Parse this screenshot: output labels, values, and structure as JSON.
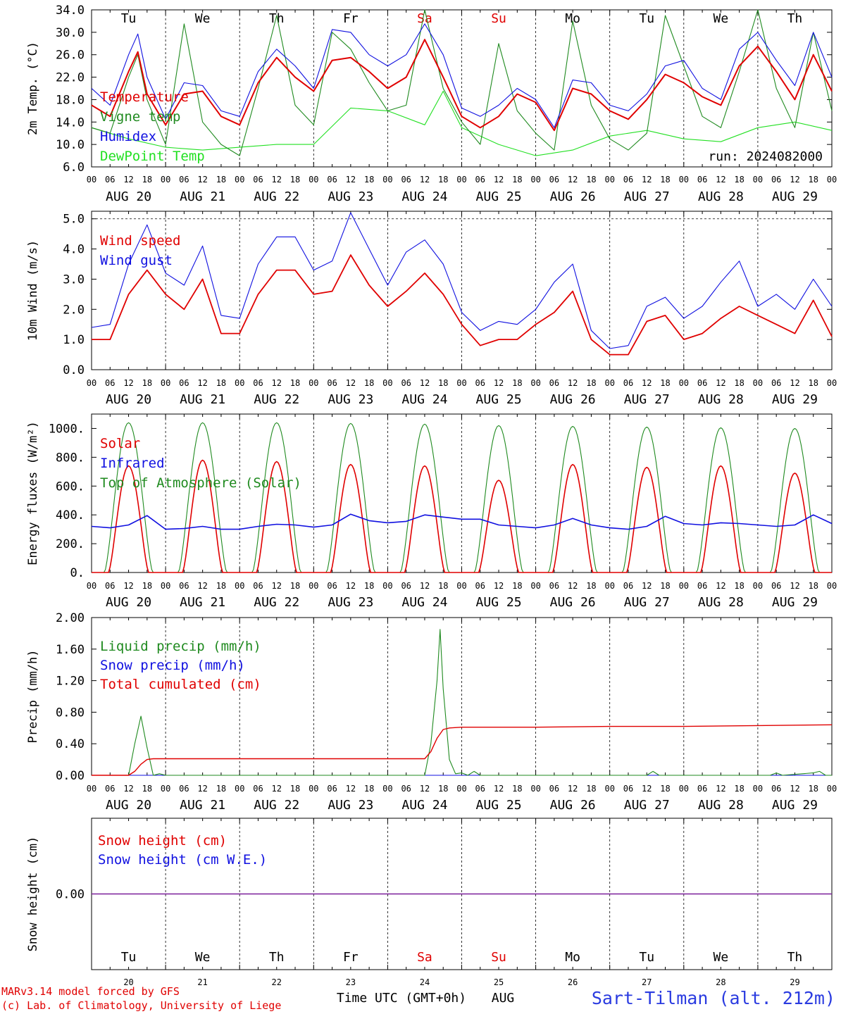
{
  "colors": {
    "red": "#e00000",
    "green": "#1f8a1f",
    "blue": "#1010e0",
    "lightgreen": "#22e022",
    "purple": "#7a1f9a"
  },
  "days": [
    "Tu",
    "We",
    "Th",
    "Fr",
    "Sa",
    "Su",
    "Mo",
    "Tu",
    "We",
    "Th"
  ],
  "weekend_days": [
    4,
    5
  ],
  "dates": [
    "AUG 20",
    "AUG 21",
    "AUG 22",
    "AUG 23",
    "AUG 24",
    "AUG 25",
    "AUG 26",
    "AUG 27",
    "AUG 28",
    "AUG 29"
  ],
  "date_numbers": [
    "20",
    "21",
    "22",
    "23",
    "24",
    "25",
    "26",
    "27",
    "28",
    "29"
  ],
  "hour_ticks": [
    "00",
    "06",
    "12",
    "18"
  ],
  "final_hour_tick": "00",
  "footer": {
    "credit_line1": "MARv3.14 model forced by GFS",
    "credit_line2": "(c) Lab. of Climatology, University of Liege",
    "xlabel": "Time UTC (GMT+0h)",
    "month": "AUG",
    "station": "Sart-Tilman (alt. 212m)"
  },
  "chart_data": [
    {
      "type": "line",
      "ylabel": "2m Temp. (°C)",
      "ylim": [
        6,
        34
      ],
      "yticks": [
        "6.0",
        "10.0",
        "14.0",
        "18.0",
        "22.0",
        "26.0",
        "30.0",
        "34.0"
      ],
      "run_label": "run: 2024082000",
      "x_unit": "hours since 2024-08-20 00 UTC",
      "series": [
        {
          "name": "Temperature",
          "color": "red",
          "x": [
            0,
            6,
            12,
            15,
            18,
            24,
            30,
            36,
            42,
            48,
            54,
            60,
            66,
            72,
            78,
            84,
            90,
            96,
            102,
            108,
            114,
            120,
            126,
            132,
            138,
            144,
            150,
            156,
            162,
            168,
            174,
            180,
            186,
            192,
            198,
            204,
            210,
            216,
            222,
            228,
            234,
            240
          ],
          "y": [
            17,
            15,
            23,
            26.5,
            19,
            13.5,
            19,
            19.5,
            15,
            13.5,
            21,
            25.5,
            22,
            19.5,
            25,
            25.5,
            23,
            20,
            22,
            28.7,
            22,
            15,
            13,
            15,
            19,
            17.5,
            12.5,
            20,
            19,
            16,
            14.5,
            18,
            22.5,
            21,
            18.5,
            17,
            24,
            27.5,
            23,
            18,
            26,
            19.5
          ]
        },
        {
          "name": "Vigne temp",
          "color": "green",
          "x": [
            0,
            6,
            12,
            15,
            18,
            24,
            30,
            36,
            42,
            48,
            54,
            60,
            66,
            72,
            78,
            84,
            90,
            96,
            102,
            108,
            114,
            120,
            126,
            132,
            138,
            144,
            150,
            156,
            162,
            168,
            174,
            180,
            186,
            192,
            198,
            204,
            210,
            216,
            222,
            228,
            234,
            240
          ],
          "y": [
            13,
            12,
            22,
            26,
            18,
            10,
            31.5,
            14,
            10,
            8,
            20,
            33,
            17,
            13.5,
            30,
            27,
            21,
            16,
            17,
            34,
            20,
            14,
            10,
            28,
            16,
            12,
            9,
            32,
            17,
            11,
            9,
            12,
            33,
            24,
            15,
            13,
            23,
            34,
            20,
            13,
            30,
            16
          ]
        },
        {
          "name": "Humidex",
          "color": "blue",
          "x": [
            0,
            6,
            12,
            15,
            18,
            24,
            30,
            36,
            42,
            48,
            54,
            60,
            66,
            72,
            78,
            84,
            90,
            96,
            102,
            108,
            114,
            120,
            126,
            132,
            138,
            144,
            150,
            156,
            162,
            168,
            174,
            180,
            186,
            192,
            198,
            204,
            210,
            216,
            222,
            228,
            234,
            240
          ],
          "y": [
            20,
            17,
            26,
            29.7,
            22,
            14.5,
            21,
            20.5,
            16,
            15,
            23,
            27,
            24,
            20,
            30.5,
            30,
            26,
            24,
            26,
            31.5,
            26,
            16.5,
            15,
            17,
            20,
            18,
            13,
            21.5,
            21,
            17,
            16,
            19,
            24,
            25,
            20,
            18,
            27,
            30,
            25,
            20.5,
            30,
            22
          ]
        },
        {
          "name": "DewPoint Temp",
          "color": "lightgreen",
          "x": [
            0,
            12,
            24,
            36,
            48,
            60,
            72,
            84,
            96,
            108,
            114,
            120,
            132,
            144,
            156,
            168,
            180,
            192,
            204,
            216,
            228,
            240
          ],
          "y": [
            13,
            11,
            9.5,
            9,
            9.5,
            10,
            10,
            16.5,
            16,
            13.5,
            19.5,
            13,
            10,
            8,
            9,
            11.5,
            12.5,
            11,
            10.5,
            13,
            14,
            12.5
          ]
        }
      ]
    },
    {
      "type": "line",
      "ylabel": "10m Wind (m/s)",
      "ylim": [
        0,
        5.25
      ],
      "yticks": [
        "0.0",
        "1.0",
        "2.0",
        "3.0",
        "4.0",
        "5.0"
      ],
      "reference_line": 5.0,
      "x_unit": "hours since 2024-08-20 00 UTC",
      "series": [
        {
          "name": "Wind speed",
          "color": "red",
          "x": [
            0,
            6,
            12,
            18,
            24,
            30,
            36,
            42,
            48,
            54,
            60,
            66,
            72,
            78,
            84,
            90,
            96,
            102,
            108,
            114,
            120,
            126,
            132,
            138,
            144,
            150,
            156,
            162,
            168,
            174,
            180,
            186,
            192,
            198,
            204,
            210,
            216,
            222,
            228,
            234,
            240
          ],
          "y": [
            1.0,
            1.0,
            2.5,
            3.3,
            2.5,
            2.0,
            3.0,
            1.2,
            1.2,
            2.5,
            3.3,
            3.3,
            2.5,
            2.6,
            3.8,
            2.8,
            2.1,
            2.6,
            3.2,
            2.5,
            1.5,
            0.8,
            1.0,
            1.0,
            1.5,
            1.9,
            2.6,
            1.0,
            0.5,
            0.5,
            1.6,
            1.8,
            1.0,
            1.2,
            1.7,
            2.1,
            1.8,
            1.5,
            1.2,
            2.3,
            1.1
          ]
        },
        {
          "name": "Wind gust",
          "color": "blue",
          "x": [
            0,
            6,
            12,
            18,
            24,
            30,
            36,
            42,
            48,
            54,
            60,
            66,
            72,
            78,
            84,
            90,
            96,
            102,
            108,
            114,
            120,
            126,
            132,
            138,
            144,
            150,
            156,
            162,
            168,
            174,
            180,
            186,
            192,
            198,
            204,
            210,
            216,
            222,
            228,
            234,
            240
          ],
          "y": [
            1.4,
            1.5,
            3.5,
            4.8,
            3.2,
            2.8,
            4.1,
            1.8,
            1.7,
            3.5,
            4.4,
            4.4,
            3.3,
            3.6,
            5.2,
            4.0,
            2.8,
            3.9,
            4.3,
            3.5,
            1.9,
            1.3,
            1.6,
            1.5,
            2.0,
            2.9,
            3.5,
            1.3,
            0.7,
            0.8,
            2.1,
            2.4,
            1.7,
            2.1,
            2.9,
            3.6,
            2.1,
            2.5,
            2.0,
            3.0,
            2.1
          ]
        }
      ]
    },
    {
      "type": "line",
      "ylabel": "Energy fluxes (W/m²)",
      "ylim": [
        0,
        1100
      ],
      "yticks": [
        "0.",
        "200.",
        "400.",
        "600.",
        "800.",
        "1000."
      ],
      "x_unit": "hours since 2024-08-20 00 UTC",
      "daily_peaks": {
        "Top of Atmosphere (Solar)": [
          1040,
          1040,
          1040,
          1035,
          1030,
          1020,
          1015,
          1010,
          1005,
          1000
        ],
        "Solar": [
          740,
          780,
          770,
          750,
          740,
          640,
          750,
          730,
          740,
          690
        ]
      },
      "series": [
        {
          "name": "Solar",
          "color": "red",
          "derived_from": "daily_peaks"
        },
        {
          "name": "Infrared",
          "color": "blue",
          "x": [
            0,
            6,
            12,
            18,
            24,
            30,
            36,
            42,
            48,
            54,
            60,
            66,
            72,
            78,
            84,
            90,
            96,
            102,
            108,
            114,
            120,
            126,
            132,
            138,
            144,
            150,
            156,
            162,
            168,
            174,
            180,
            186,
            192,
            198,
            204,
            210,
            216,
            222,
            228,
            234,
            240
          ],
          "y": [
            320,
            310,
            330,
            395,
            300,
            305,
            320,
            300,
            300,
            320,
            335,
            330,
            315,
            330,
            405,
            360,
            345,
            355,
            400,
            385,
            370,
            370,
            330,
            320,
            310,
            330,
            375,
            330,
            310,
            300,
            320,
            390,
            340,
            330,
            345,
            340,
            330,
            320,
            330,
            400,
            340
          ]
        },
        {
          "name": "Top of Atmosphere (Solar)",
          "color": "green",
          "derived_from": "daily_peaks"
        }
      ]
    },
    {
      "type": "line",
      "ylabel": "Precip (mm/h)",
      "ylim": [
        0,
        2.0
      ],
      "yticks": [
        "0.00",
        "0.40",
        "0.80",
        "1.20",
        "1.60",
        "2.00"
      ],
      "x_unit": "hours since 2024-08-20 00 UTC",
      "series": [
        {
          "name": "Liquid precip (mm/h)",
          "color": "green",
          "x": [
            0,
            12,
            14,
            16,
            17,
            18,
            20,
            22,
            24,
            108,
            110,
            112,
            113,
            114,
            116,
            118,
            120,
            122,
            124,
            126,
            180,
            182,
            184,
            186,
            220,
            222,
            224,
            234,
            236,
            238,
            240
          ],
          "y": [
            0,
            0,
            0.4,
            0.75,
            0.55,
            0.35,
            0,
            0.02,
            0,
            0,
            0.4,
            1.2,
            1.85,
            1.1,
            0.2,
            0.02,
            0.03,
            0,
            0.05,
            0,
            0,
            0.05,
            0,
            0,
            0,
            0.03,
            0,
            0.03,
            0.05,
            0,
            0
          ]
        },
        {
          "name": "Snow precip (mm/h)",
          "color": "blue",
          "x": [
            0,
            240
          ],
          "y": [
            0,
            0
          ]
        },
        {
          "name": "Total cumulated (cm)",
          "color": "red",
          "x": [
            0,
            12,
            14,
            16,
            18,
            20,
            108,
            110,
            112,
            114,
            116,
            120,
            144,
            168,
            192,
            216,
            240
          ],
          "y": [
            0,
            0,
            0.05,
            0.14,
            0.2,
            0.21,
            0.21,
            0.3,
            0.47,
            0.58,
            0.6,
            0.61,
            0.61,
            0.62,
            0.62,
            0.63,
            0.64
          ]
        }
      ]
    },
    {
      "type": "line",
      "ylabel": "Snow height (cm)",
      "ytick": "0.00",
      "series": [
        {
          "name": "Snow height (cm)",
          "color": "red",
          "x": [
            0,
            240
          ],
          "y": [
            0,
            0
          ]
        },
        {
          "name": "Snow height (cm W.E.)",
          "color": "blue",
          "x": [
            0,
            240
          ],
          "y": [
            0,
            0
          ]
        }
      ]
    }
  ]
}
